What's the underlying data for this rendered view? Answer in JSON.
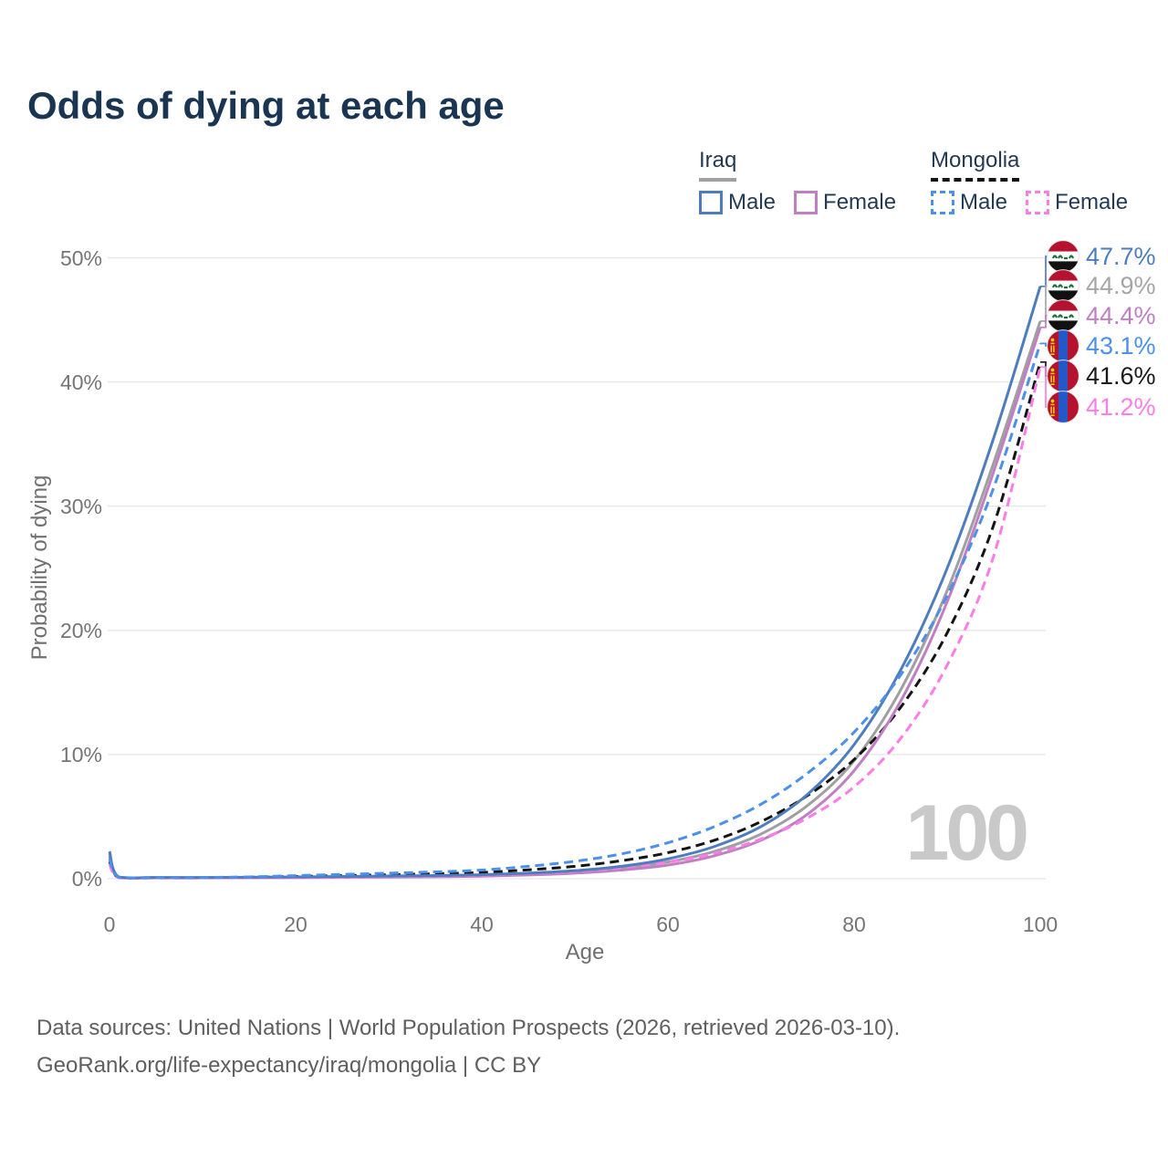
{
  "title": "Odds of dying at each age",
  "watermark": "100",
  "legend": {
    "groups": [
      {
        "name": "Iraq",
        "line_style": "solid",
        "underline_color": "#a0a0a0",
        "items": [
          {
            "label": "Male",
            "color": "#4e7dbe"
          },
          {
            "label": "Female",
            "color": "#c17fc3"
          }
        ]
      },
      {
        "name": "Mongolia",
        "line_style": "dashed",
        "underline_color": "#141414",
        "items": [
          {
            "label": "Male",
            "color": "#4b90ea"
          },
          {
            "label": "Female",
            "color": "#fb7de7"
          }
        ]
      }
    ]
  },
  "axes": {
    "x": {
      "title": "Age",
      "tick_values": [
        0,
        20,
        40,
        60,
        80,
        100
      ]
    },
    "y": {
      "title": "Probability of dying",
      "tick_values": [
        0,
        10,
        20,
        30,
        40,
        50
      ],
      "tick_labels": [
        "0%",
        "10%",
        "20%",
        "30%",
        "40%",
        "50%"
      ]
    }
  },
  "chart_data": {
    "type": "line",
    "title": "Odds of dying at each age",
    "xlabel": "Age",
    "ylabel": "Probability of dying",
    "xlim": [
      0,
      100
    ],
    "ylim": [
      0,
      50
    ],
    "grid": "horizontal",
    "legend_position": "top-right",
    "x_ages": [
      0,
      1,
      5,
      10,
      15,
      20,
      25,
      30,
      35,
      40,
      45,
      50,
      55,
      60,
      65,
      70,
      75,
      80,
      85,
      90,
      95,
      100
    ],
    "series": [
      {
        "name": "Iraq Male",
        "country": "iraq",
        "sex": "male",
        "color": "#4e7dbe",
        "dash": "solid",
        "values": [
          2.2,
          0.15,
          0.1,
          0.1,
          0.12,
          0.15,
          0.18,
          0.22,
          0.26,
          0.32,
          0.45,
          0.65,
          1.0,
          1.6,
          2.6,
          4.2,
          6.8,
          10.8,
          16.8,
          25.0,
          35.5,
          47.7
        ]
      },
      {
        "name": "Iraq",
        "country": "iraq",
        "sex": "both",
        "color": "#a0a0a0",
        "dash": "solid",
        "values": [
          2.0,
          0.13,
          0.09,
          0.08,
          0.1,
          0.12,
          0.14,
          0.17,
          0.21,
          0.26,
          0.37,
          0.55,
          0.85,
          1.35,
          2.2,
          3.6,
          5.9,
          9.5,
          15.2,
          23.2,
          33.5,
          44.9
        ]
      },
      {
        "name": "Iraq Female",
        "country": "iraq",
        "sex": "female",
        "color": "#c17fc3",
        "dash": "solid",
        "values": [
          1.8,
          0.11,
          0.07,
          0.07,
          0.08,
          0.09,
          0.11,
          0.13,
          0.16,
          0.2,
          0.3,
          0.45,
          0.7,
          1.1,
          1.85,
          3.1,
          5.2,
          8.7,
          14.3,
          22.3,
          32.8,
          44.4
        ]
      },
      {
        "name": "Mongolia Male",
        "country": "mongolia",
        "sex": "male",
        "color": "#4b90ea",
        "dash": "dashed",
        "values": [
          1.6,
          0.12,
          0.1,
          0.1,
          0.15,
          0.25,
          0.35,
          0.45,
          0.55,
          0.7,
          1.0,
          1.4,
          2.0,
          2.9,
          4.2,
          6.0,
          8.5,
          11.8,
          16.4,
          22.8,
          31.5,
          43.1
        ]
      },
      {
        "name": "Mongolia",
        "country": "mongolia",
        "sex": "both",
        "color": "#141414",
        "dash": "dashed",
        "values": [
          1.4,
          0.1,
          0.08,
          0.08,
          0.12,
          0.18,
          0.25,
          0.32,
          0.4,
          0.5,
          0.72,
          1.0,
          1.45,
          2.1,
          3.1,
          4.6,
          6.7,
          9.6,
          13.8,
          19.8,
          28.5,
          41.6
        ]
      },
      {
        "name": "Mongolia Female",
        "country": "mongolia",
        "sex": "female",
        "color": "#fb7de7",
        "dash": "dashed",
        "values": [
          1.2,
          0.09,
          0.06,
          0.06,
          0.08,
          0.1,
          0.14,
          0.18,
          0.22,
          0.28,
          0.42,
          0.6,
          0.9,
          1.35,
          2.05,
          3.2,
          4.9,
          7.4,
          11.3,
          17.2,
          26.0,
          41.2
        ]
      }
    ]
  },
  "end_labels": [
    {
      "value": "47.7%",
      "color": "#4e7dbe",
      "flag": "iraq",
      "series": "Iraq Male"
    },
    {
      "value": "44.9%",
      "color": "#a6a6a6",
      "flag": "iraq",
      "series": "Iraq"
    },
    {
      "value": "44.4%",
      "color": "#c17fc3",
      "flag": "iraq",
      "series": "Iraq Female"
    },
    {
      "value": "43.1%",
      "color": "#4b90ea",
      "flag": "mongolia",
      "series": "Mongolia Male"
    },
    {
      "value": "41.6%",
      "color": "#1a1a1a",
      "flag": "mongolia",
      "series": "Mongolia"
    },
    {
      "value": "41.2%",
      "color": "#fb7de7",
      "flag": "mongolia",
      "series": "Mongolia Female"
    }
  ],
  "footer": {
    "line1": "Data sources: United Nations | World Population Prospects (2026, retrieved 2026-03-10).",
    "line2": "GeoRank.org/life-expectancy/iraq/mongolia | CC BY"
  }
}
